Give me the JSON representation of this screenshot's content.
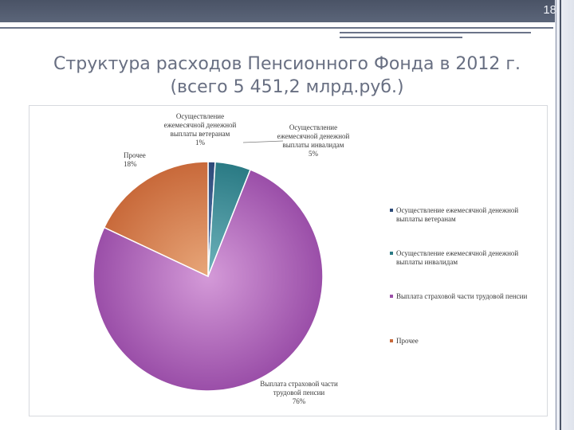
{
  "slide": {
    "number": "18"
  },
  "title": {
    "line1": "Структура расходов Пенсионного Фонда  в 2012 г.",
    "line2": "(всего 5 451,2 млрд.руб.)"
  },
  "chart_data": {
    "type": "pie",
    "title": "",
    "slices": [
      {
        "label_lines": [
          "Осуществление",
          "ежемесячной денежной",
          "выплаты ветеранам"
        ],
        "value_label": "1%",
        "legend_lines": [
          "Осуществление ежемесячной денежной",
          "выплаты ветеранам"
        ],
        "value": 1,
        "color": "#2d4a78",
        "color_light": "#5c7fb4"
      },
      {
        "label_lines": [
          "Осуществление",
          "ежемесячной денежной",
          "выплаты инвалидам"
        ],
        "value_label": "5%",
        "legend_lines": [
          "Осуществление ежемесячной денежной",
          "выплаты инвалидам"
        ],
        "value": 5,
        "color": "#2a7a84",
        "color_light": "#6fb3bc"
      },
      {
        "label_lines": [
          "Выплата страховой части",
          "трудовой пенсии"
        ],
        "value_label": "76%",
        "legend_lines": [
          "Выплата страховой части трудовой пенсии"
        ],
        "value": 76,
        "color": "#9a4ea8",
        "color_light": "#d49ad8"
      },
      {
        "label_lines": [
          "Прочее"
        ],
        "value_label": "18%",
        "legend_lines": [
          "Прочее"
        ],
        "value": 18,
        "color": "#c8693a",
        "color_light": "#e8a77a"
      }
    ],
    "legend_position": "right"
  }
}
